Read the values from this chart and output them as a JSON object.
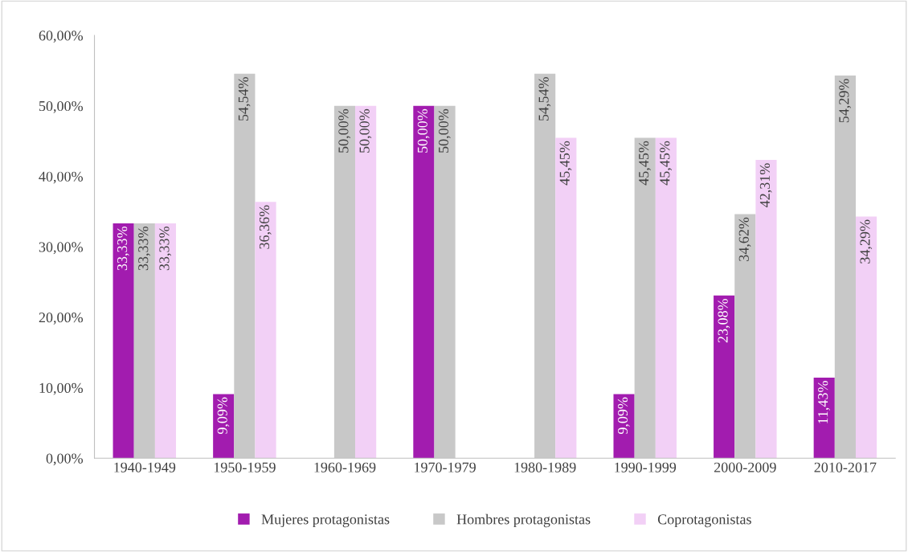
{
  "chart_data": {
    "type": "bar",
    "categories": [
      "1940-1949",
      "1950-1959",
      "1960-1969",
      "1970-1979",
      "1980-1989",
      "1990-1999",
      "2000-2009",
      "2010-2017"
    ],
    "series": [
      {
        "name": "Mujeres protagonistas",
        "color": "#a21caf",
        "values": [
          33.33,
          9.09,
          null,
          50.0,
          null,
          9.09,
          23.08,
          11.43
        ],
        "value_labels": [
          "33,33%",
          "9,09%",
          null,
          "50,00%",
          null,
          "9,09%",
          "23,08%",
          "11,43%"
        ]
      },
      {
        "name": "Hombres protagonistas",
        "color": "#c8c8c8",
        "values": [
          33.33,
          54.54,
          50.0,
          50.0,
          54.54,
          45.45,
          34.62,
          54.29
        ],
        "value_labels": [
          "33,33%",
          "54,54%",
          "50,00%",
          "50,00%",
          "54,54%",
          "45,45%",
          "34,62%",
          "54,29%"
        ]
      },
      {
        "name": "Coprotagonistas",
        "color": "#f2d0f6",
        "values": [
          33.33,
          36.36,
          50.0,
          null,
          45.45,
          45.45,
          42.31,
          34.29
        ],
        "value_labels": [
          "33,33%",
          "36,36%",
          "50,00%",
          null,
          "45,45%",
          "45,45%",
          "42,31%",
          "34,29%"
        ]
      }
    ],
    "ylim": [
      0,
      60
    ],
    "yticks": [
      {
        "value": 0,
        "label": "0,00%"
      },
      {
        "value": 10,
        "label": "10,00%"
      },
      {
        "value": 20,
        "label": "20,00%"
      },
      {
        "value": 30,
        "label": "30,00%"
      },
      {
        "value": 40,
        "label": "40,00%"
      },
      {
        "value": 50,
        "label": "50,00%"
      },
      {
        "value": 60,
        "label": "60,00%"
      }
    ],
    "grid": false,
    "legend": "bottom"
  }
}
